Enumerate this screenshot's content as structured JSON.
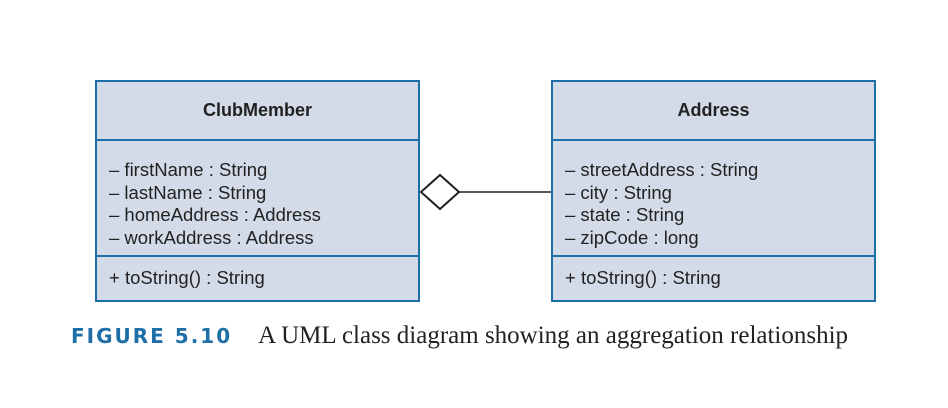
{
  "classes": {
    "clubmember": {
      "name": "ClubMember",
      "attributes": [
        "– firstName : String",
        "– lastName : String",
        "– homeAddress : Address",
        "– workAddress : Address"
      ],
      "operations": [
        "+ toString() : String"
      ]
    },
    "address": {
      "name": "Address",
      "attributes": [
        "– streetAddress : String",
        "– city : String",
        "– state : String",
        "– zipCode : long"
      ],
      "operations": [
        "+ toString() : String"
      ]
    }
  },
  "relationship": {
    "type": "aggregation"
  },
  "caption": {
    "label": "FIGURE 5.10",
    "text": "A UML class diagram showing an aggregation relationship"
  },
  "colors": {
    "box_border": "#1e6fa8",
    "box_fill": "#d3dae8",
    "caption_label": "#1e6fa8",
    "text": "#222222"
  }
}
